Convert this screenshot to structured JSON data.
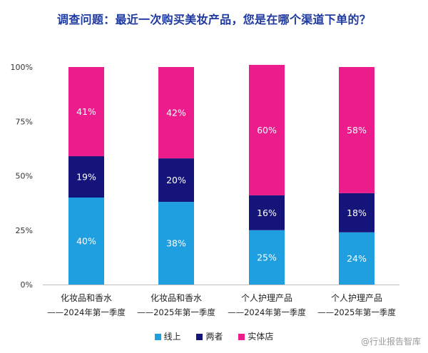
{
  "title": "调查问题：最近一次购买美妆产品，您是在哪个渠道下单的？",
  "watermark": "@行业报告智库",
  "colors": {
    "title": "#1f3aa0"
  },
  "chart_data": {
    "type": "bar",
    "stacked": true,
    "categories": [
      {
        "line1": "化妆品和香水",
        "line2": "——2024年第一季度"
      },
      {
        "line1": "化妆品和香水",
        "line2": "——2025年第一季度"
      },
      {
        "line1": "个人护理产品",
        "line2": "——2024年第一季度"
      },
      {
        "line1": "个人护理产品",
        "line2": "——2025年第一季度"
      }
    ],
    "series": [
      {
        "name": "线上",
        "color": "#1f9ee0",
        "values": [
          40,
          38,
          25,
          24
        ]
      },
      {
        "name": "两者",
        "color": "#14147a",
        "values": [
          19,
          20,
          16,
          18
        ]
      },
      {
        "name": "实体店",
        "color": "#ec1c8c",
        "values": [
          41,
          42,
          60,
          58
        ]
      }
    ],
    "value_suffix": "%",
    "yticks": [
      "0%",
      "25%",
      "50%",
      "75%",
      "100%"
    ],
    "ylim": [
      0,
      100
    ],
    "grid": false,
    "legend_position": "bottom"
  }
}
